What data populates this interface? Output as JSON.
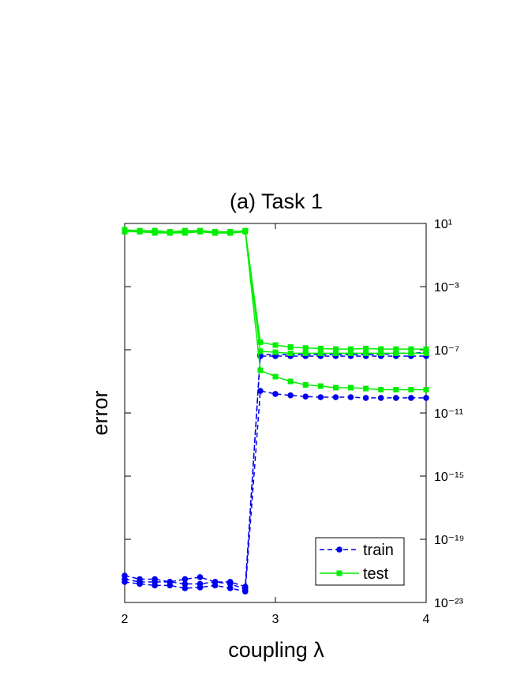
{
  "chart_data": {
    "type": "line",
    "title": "(a) Task 1",
    "x_label": "coupling λ",
    "y_label": "error",
    "yscale": "log",
    "legend": "lower right",
    "x": [
      2.0,
      2.1,
      2.2,
      2.3,
      2.4,
      2.5,
      2.6,
      2.7,
      2.8,
      2.9,
      3.0,
      3.1,
      3.2,
      3.3,
      3.4,
      3.5,
      3.6,
      3.7,
      3.8,
      3.9,
      4.0
    ],
    "xlim": [
      2,
      4
    ],
    "xticks": [
      2,
      3,
      4
    ],
    "ylim": [
      1e-23,
      10
    ],
    "yticks": [
      {
        "value": 10,
        "label": "10¹"
      },
      {
        "value": 0.001,
        "label": "10⁻³"
      },
      {
        "value": 1e-07,
        "label": "10⁻⁷"
      },
      {
        "value": 1e-11,
        "label": "10⁻¹¹"
      },
      {
        "value": 1e-15,
        "label": "10⁻¹⁵"
      },
      {
        "value": 1e-19,
        "label": "10⁻¹⁹"
      },
      {
        "value": 1e-23,
        "label": "10⁻²³"
      }
    ],
    "series": [
      {
        "name": "train",
        "color": "#0000ee",
        "linestyle": "dashed",
        "marker": "circle",
        "values": [
          5e-22,
          3e-22,
          3e-22,
          2e-22,
          3e-22,
          4e-22,
          2e-22,
          2e-22,
          1e-22,
          4e-08,
          4e-08,
          4e-08,
          4e-08,
          4e-08,
          4e-08,
          4e-08,
          4e-08,
          4e-08,
          4e-08,
          4e-08,
          4e-08
        ]
      },
      {
        "name": "train",
        "color": "#0000ee",
        "linestyle": "dashed",
        "marker": "circle",
        "values": [
          3e-22,
          2e-22,
          2e-22,
          2e-22,
          1.5e-22,
          1.5e-22,
          2e-22,
          1.5e-22,
          7e-23,
          5e-08,
          5e-08,
          5e-08,
          5e-08,
          5e-08,
          5e-08,
          5e-08,
          5e-08,
          5e-08,
          6e-08,
          6e-08,
          7e-08
        ]
      },
      {
        "name": "train",
        "color": "#0000ee",
        "linestyle": "dashed",
        "marker": "circle",
        "values": [
          2e-22,
          1.5e-22,
          1.2e-22,
          1.2e-22,
          8e-23,
          9e-23,
          1.2e-22,
          8e-23,
          5e-23,
          2.5e-10,
          1.6e-10,
          1.3e-10,
          1.1e-10,
          1e-10,
          1e-10,
          1e-10,
          9e-11,
          9e-11,
          9e-11,
          9e-11,
          9e-11
        ]
      },
      {
        "name": "test",
        "color": "#00ee00",
        "linestyle": "solid",
        "marker": "square",
        "values": [
          4,
          3.5,
          3.5,
          3,
          3.5,
          3.5,
          3,
          3,
          3.5,
          3e-07,
          2e-07,
          1.5e-07,
          1.3e-07,
          1.2e-07,
          1.1e-07,
          1.1e-07,
          1.2e-07,
          1.1e-07,
          1.1e-07,
          1.1e-07,
          1.1e-07
        ]
      },
      {
        "name": "test",
        "color": "#00ee00",
        "linestyle": "solid",
        "marker": "square",
        "values": [
          3.5,
          3,
          3,
          2.5,
          3,
          3,
          2.5,
          2.5,
          3,
          8e-08,
          7e-08,
          6e-08,
          6e-08,
          6e-08,
          6e-08,
          6e-08,
          6e-08,
          6e-08,
          6e-08,
          6e-08,
          6e-08
        ]
      },
      {
        "name": "test",
        "color": "#00ee00",
        "linestyle": "solid",
        "marker": "square",
        "values": [
          3,
          3,
          2.5,
          2.5,
          2.5,
          3,
          2.5,
          2.5,
          3,
          5e-09,
          2e-09,
          1e-09,
          6e-10,
          5e-10,
          4e-10,
          4e-10,
          3.5e-10,
          3e-10,
          3e-10,
          3e-10,
          3e-10
        ]
      }
    ]
  }
}
